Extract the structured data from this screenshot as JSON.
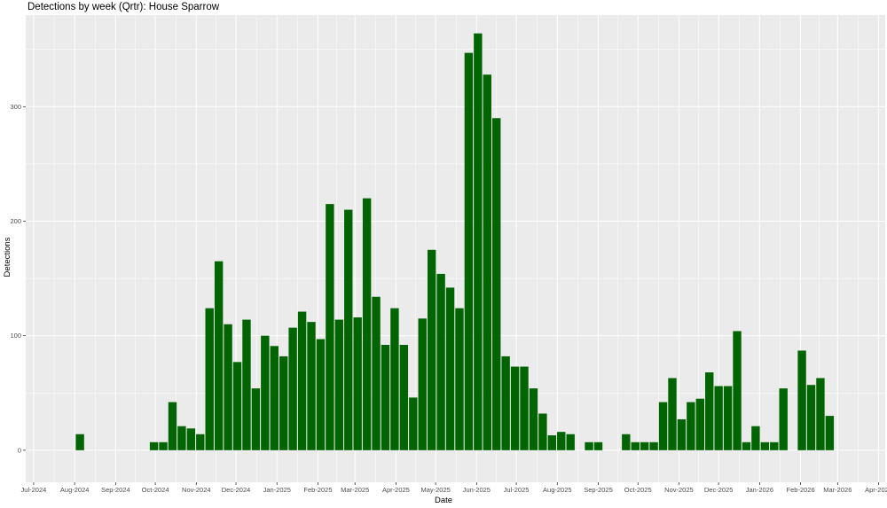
{
  "chart_data": {
    "type": "bar",
    "title": "Detections by week (Qrtr): House Sparrow",
    "xlabel": "Date",
    "ylabel": "Detections",
    "ylim": [
      -28,
      380
    ],
    "y_ticks": [
      0,
      100,
      200,
      300
    ],
    "x_ticks": [
      "Jul-2024",
      "Aug-2024",
      "Sep-2024",
      "Oct-2024",
      "Nov-2024",
      "Dec-2024",
      "Jan-2025",
      "Feb-2025",
      "Mar-2025",
      "Apr-2025",
      "May-2025",
      "Jun-2025",
      "Jul-2025",
      "Aug-2025",
      "Sep-2025",
      "Oct-2025",
      "Nov-2025",
      "Dec-2025",
      "Jan-2026",
      "Feb-2026",
      "Mar-2026",
      "Apr-2026"
    ],
    "x_tick_dates": [
      "2024-07-01",
      "2024-08-01",
      "2024-09-01",
      "2024-10-01",
      "2024-11-01",
      "2024-12-01",
      "2025-01-01",
      "2025-02-01",
      "2025-03-01",
      "2025-04-01",
      "2025-05-01",
      "2025-06-01",
      "2025-07-01",
      "2025-08-01",
      "2025-09-01",
      "2025-10-01",
      "2025-11-01",
      "2025-12-01",
      "2026-01-01",
      "2026-02-01",
      "2026-03-01",
      "2026-04-01"
    ],
    "xlim": [
      "2024-06-25",
      "2026-04-06"
    ],
    "grid": true,
    "bar_color": "#006400",
    "panel_color": "#ebebeb",
    "grid_color": "#ffffff",
    "series": [
      {
        "x": [
          "2024-08-05",
          "2024-09-30",
          "2024-10-07",
          "2024-10-14",
          "2024-10-21",
          "2024-10-28",
          "2024-11-04",
          "2024-11-11",
          "2024-11-18",
          "2024-11-25",
          "2024-12-02",
          "2024-12-09",
          "2024-12-16",
          "2024-12-23",
          "2024-12-30",
          "2025-01-06",
          "2025-01-13",
          "2025-01-20",
          "2025-01-27",
          "2025-02-03",
          "2025-02-10",
          "2025-02-17",
          "2025-02-24",
          "2025-03-03",
          "2025-03-10",
          "2025-03-17",
          "2025-03-24",
          "2025-03-31",
          "2025-04-07",
          "2025-04-14",
          "2025-04-21",
          "2025-04-28",
          "2025-05-05",
          "2025-05-12",
          "2025-05-19",
          "2025-05-26",
          "2025-06-02",
          "2025-06-09",
          "2025-06-16",
          "2025-06-23",
          "2025-06-30",
          "2025-07-07",
          "2025-07-14",
          "2025-07-21",
          "2025-07-28",
          "2025-08-04",
          "2025-08-11",
          "2025-08-25",
          "2025-09-01",
          "2025-09-22",
          "2025-09-29",
          "2025-10-06",
          "2025-10-13",
          "2025-10-20",
          "2025-10-27",
          "2025-11-03",
          "2025-11-10",
          "2025-11-17",
          "2025-11-24",
          "2025-12-01",
          "2025-12-08",
          "2025-12-15",
          "2025-12-22",
          "2025-12-29",
          "2026-01-05",
          "2026-01-12",
          "2026-01-19",
          "2026-02-02",
          "2026-02-09",
          "2026-02-16",
          "2026-02-23"
        ],
        "values": [
          14,
          7,
          7,
          42,
          21,
          19,
          14,
          124,
          165,
          110,
          77,
          114,
          54,
          100,
          91,
          82,
          107,
          121,
          112,
          97,
          215,
          114,
          210,
          116,
          220,
          134,
          92,
          124,
          92,
          46,
          115,
          175,
          154,
          142,
          124,
          347,
          364,
          328,
          290,
          82,
          73,
          73,
          54,
          32,
          13,
          16,
          14,
          7,
          7,
          14,
          7,
          7,
          7,
          42,
          63,
          27,
          42,
          45,
          68,
          56,
          56,
          104,
          7,
          21,
          7,
          7,
          54,
          87,
          57,
          63,
          30
        ]
      }
    ]
  }
}
